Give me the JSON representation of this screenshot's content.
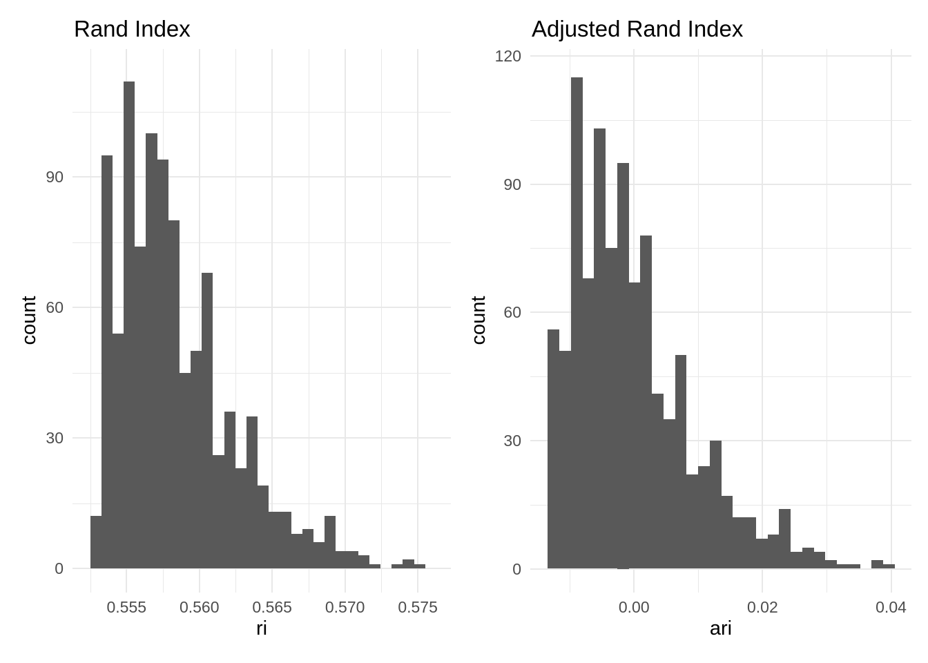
{
  "figure": {
    "background_color": "#ffffff",
    "bar_color": "#595959",
    "gridline_color": "#e8e8e8",
    "tick_text_color": "#4d4d4d",
    "title_text_color": "#000000"
  },
  "chart_data": [
    {
      "type": "bar",
      "variant": "histogram",
      "title": "Rand Index",
      "xlabel": "ri",
      "ylabel": "count",
      "bin_start": 0.5525,
      "bin_width": 0.0007667,
      "counts": [
        12,
        95,
        54,
        112,
        74,
        100,
        94,
        80,
        45,
        50,
        68,
        26,
        36,
        23,
        35,
        19,
        13,
        13,
        8,
        9,
        6,
        12,
        4,
        4,
        3,
        1,
        0,
        1,
        2,
        1
      ],
      "total_n": 1000,
      "xlim": [
        0.55129,
        0.57727
      ],
      "ylim": [
        0,
        119.4
      ],
      "x_major_ticks": [
        0.555,
        0.56,
        0.565,
        0.57,
        0.575
      ],
      "x_tick_labels": [
        "0.555",
        "0.560",
        "0.565",
        "0.570",
        "0.575"
      ],
      "x_minor_ticks": [
        0.5525,
        0.5575,
        0.5625,
        0.5675,
        0.5725,
        0.5775
      ],
      "y_major_ticks": [
        0,
        30,
        60,
        90
      ],
      "y_tick_labels": [
        "0",
        "30",
        "60",
        "90"
      ],
      "y_minor_ticks": [
        15,
        45,
        75,
        105
      ],
      "grid": true,
      "legend": "none"
    },
    {
      "type": "bar",
      "variant": "histogram",
      "title": "Adjusted Rand Index",
      "xlabel": "ari",
      "ylabel": "count",
      "bin_start": -0.01343,
      "bin_width": 0.0018,
      "counts": [
        56,
        51,
        115,
        68,
        103,
        75,
        95,
        67,
        78,
        41,
        35,
        50,
        22,
        24,
        30,
        17,
        12,
        12,
        7,
        8,
        14,
        4,
        5,
        4,
        2,
        1,
        1,
        0,
        2,
        1
      ],
      "total_n": 1000,
      "xlim": [
        -0.016145,
        0.043165
      ],
      "ylim": [
        0,
        121.6
      ],
      "x_major_ticks": [
        0.0,
        0.02,
        0.04
      ],
      "x_tick_labels": [
        "0.00",
        "0.02",
        "0.04"
      ],
      "x_minor_ticks": [
        -0.01,
        0.01,
        0.03
      ],
      "y_major_ticks": [
        0,
        30,
        60,
        90,
        120
      ],
      "y_tick_labels": [
        "0",
        "30",
        "60",
        "90",
        "120"
      ],
      "y_minor_ticks": [
        15,
        45,
        75,
        105
      ],
      "grid": true,
      "legend": "none"
    }
  ]
}
